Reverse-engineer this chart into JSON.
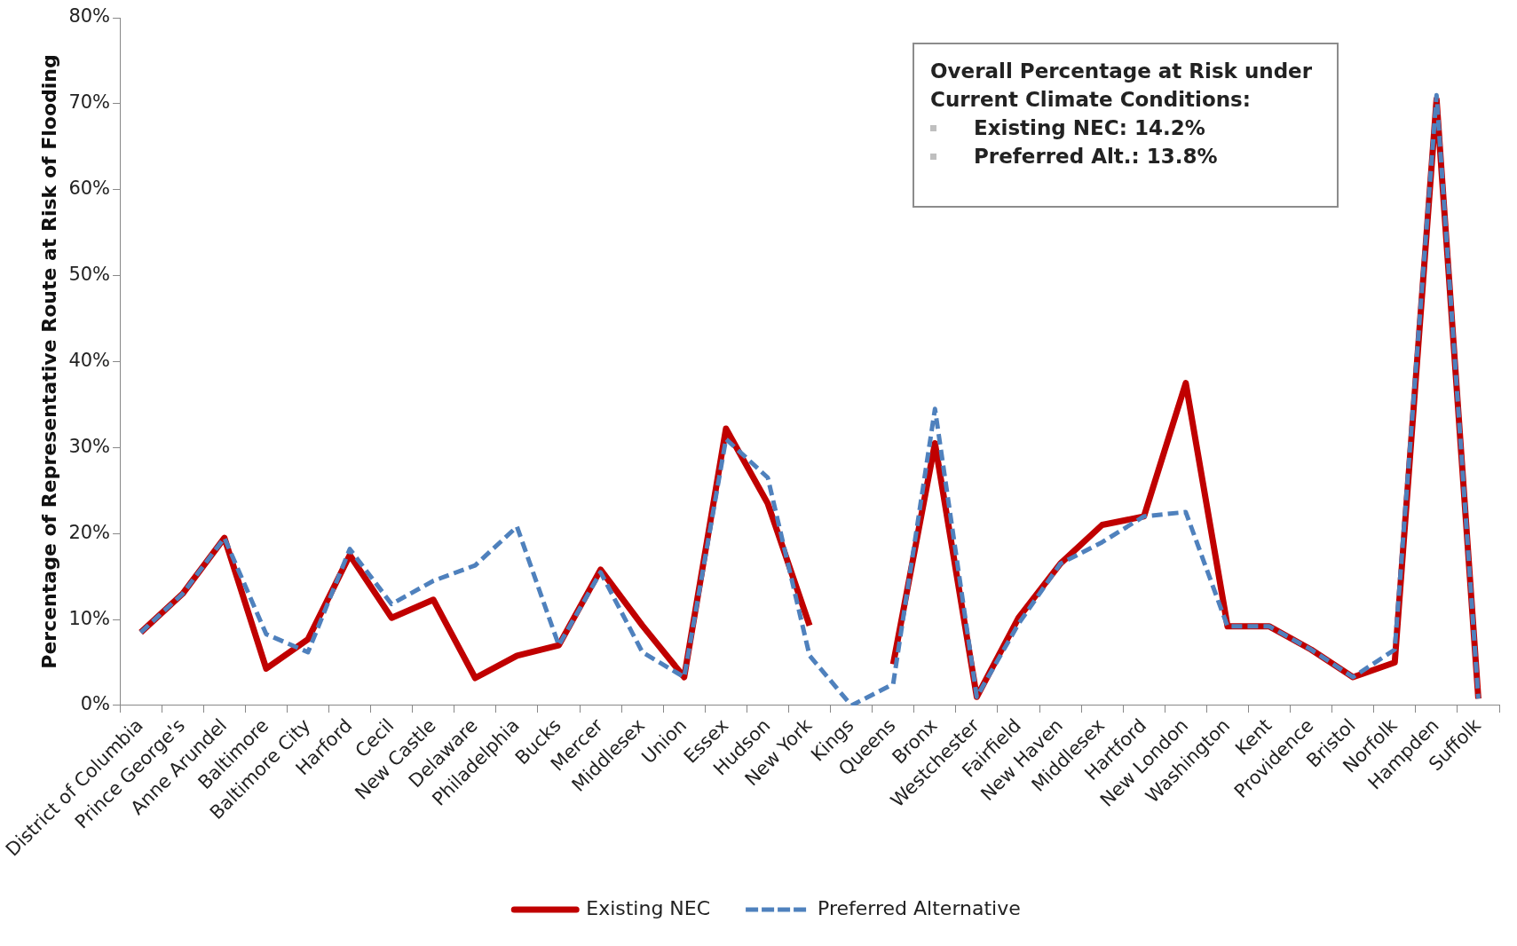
{
  "chart_data": {
    "type": "line",
    "ylabel": "Percentage of Representative Route at Risk of Flooding",
    "categories": [
      "District of Columbia",
      "Prince George's",
      "Anne Arundel",
      "Baltimore",
      "Baltimore City",
      "Harford",
      "Cecil",
      "New Castle",
      "Delaware",
      "Philadelphia",
      "Bucks",
      "Mercer",
      "Middlesex",
      "Union",
      "Essex",
      "Hudson",
      "New York",
      "Kings",
      "Queens",
      "Bronx",
      "Westchester",
      "Fairfield",
      "New Haven",
      "Middlesex",
      "Hartford",
      "New London",
      "Washington",
      "Kent",
      "Providence",
      "Bristol",
      "Norfolk",
      "Hampden",
      "Suffolk"
    ],
    "series": [
      {
        "name": "Existing NEC",
        "color": "#c00000",
        "line_style": "solid",
        "values": [
          8.5,
          13,
          19.5,
          4.3,
          7.7,
          17.5,
          10.2,
          12.3,
          3.2,
          5.8,
          7,
          15.8,
          9.3,
          3.3,
          32.2,
          23.5,
          9.3,
          null,
          4.8,
          30.5,
          1,
          10.2,
          16.5,
          21,
          22,
          37.5,
          9.2,
          9.2,
          6.5,
          3.3,
          5,
          70.5,
          0.8
        ]
      },
      {
        "name": "Preferred Alternative",
        "color": "#4f81bd",
        "line_style": "dashed",
        "values": [
          8.5,
          13,
          19.5,
          8.3,
          6.2,
          18.2,
          11.8,
          14.5,
          16.3,
          20.8,
          7,
          15.5,
          6.2,
          3.3,
          31,
          26.5,
          5.8,
          0,
          2.5,
          34.5,
          1,
          9.5,
          16.5,
          19,
          22,
          22.5,
          9.2,
          9.2,
          6.5,
          3.3,
          6.5,
          71,
          0.8
        ]
      }
    ],
    "ylim": [
      0,
      80
    ],
    "yticks": [
      {
        "value": 0,
        "label": "0%"
      },
      {
        "value": 10,
        "label": "10%"
      },
      {
        "value": 20,
        "label": "20%"
      },
      {
        "value": 30,
        "label": "30%"
      },
      {
        "value": 40,
        "label": "40%"
      },
      {
        "value": 50,
        "label": "50%"
      },
      {
        "value": 60,
        "label": "60%"
      },
      {
        "value": 70,
        "label": "70%"
      },
      {
        "value": 80,
        "label": "80%"
      }
    ],
    "annotations": [
      "Overall Percentage at Risk under Current Climate Conditions:",
      "Existing NEC: 14.2%",
      "Preferred Alt.: 13.8%"
    ],
    "grid": false,
    "legend": "bottom",
    "marker": "none"
  }
}
